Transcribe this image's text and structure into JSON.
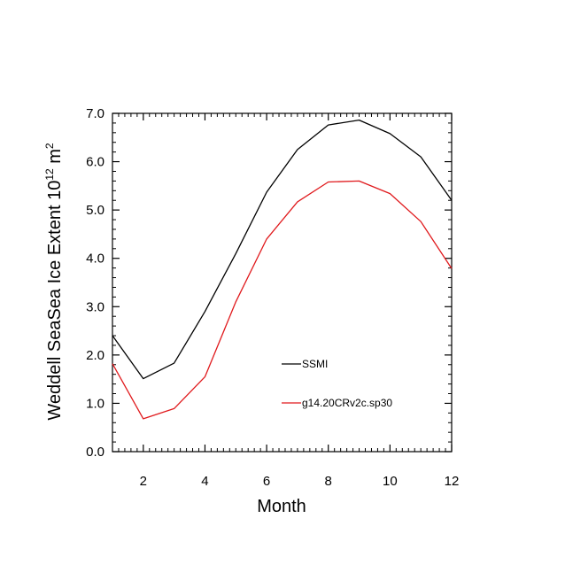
{
  "chart_data": {
    "type": "line",
    "title": "",
    "xlabel": "Month",
    "ylabel": {
      "base": "Weddell SeaSea Ice Extent 10",
      "exp1": "12",
      "mid": " m",
      "exp2": "2"
    },
    "xlim": [
      1,
      12
    ],
    "ylim": [
      0,
      7
    ],
    "x": [
      1,
      2,
      3,
      4,
      5,
      6,
      7,
      8,
      9,
      10,
      11,
      12
    ],
    "xticks": [
      "2",
      "4",
      "6",
      "8",
      "10",
      "12"
    ],
    "xtick_values": [
      2,
      4,
      6,
      8,
      10,
      12
    ],
    "yticks": [
      "0.0",
      "1.0",
      "2.0",
      "3.0",
      "4.0",
      "5.0",
      "6.0",
      "7.0"
    ],
    "ytick_values": [
      0,
      1,
      2,
      3,
      4,
      5,
      6,
      7
    ],
    "series": [
      {
        "name": "SSMI",
        "color": "#000000",
        "values": [
          2.4,
          1.51,
          1.83,
          2.9,
          4.1,
          5.37,
          6.25,
          6.76,
          6.86,
          6.58,
          6.1,
          5.2
        ]
      },
      {
        "name": "g14.20CRv2c.sp30",
        "color": "#e0191c",
        "values": [
          1.82,
          0.68,
          0.89,
          1.55,
          3.1,
          4.4,
          5.17,
          5.58,
          5.6,
          5.34,
          4.76,
          3.79
        ]
      }
    ],
    "legend": "inside-lower-right",
    "grid": false
  }
}
